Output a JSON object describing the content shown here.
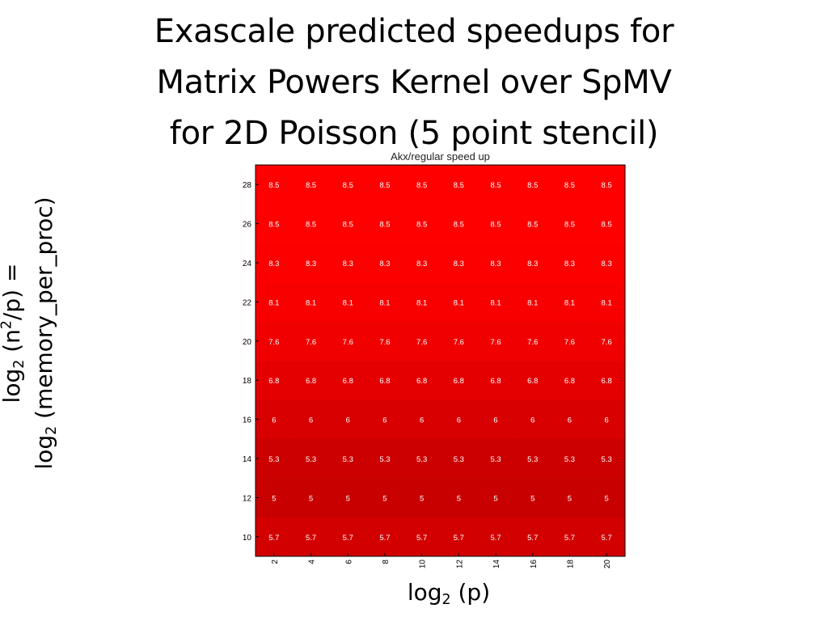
{
  "slide": {
    "title_lines": [
      "Exascale predicted speedups for",
      "Matrix Powers Kernel over SpMV",
      "for 2D Poisson (5 point stencil)"
    ]
  },
  "y_axis_label": {
    "line1": {
      "prefix": "log",
      "sub": "2",
      "middle": " (n",
      "sup": "2",
      "suffix": "/p) ="
    },
    "line2": {
      "prefix": "log",
      "sub": "2",
      "suffix": " (memory_per_proc)"
    }
  },
  "x_axis_label": {
    "prefix": "log",
    "sub": "2",
    "suffix": " (p)"
  },
  "chart_data": {
    "type": "heatmap",
    "title": "Akx/regular speed up",
    "x_ticks": [
      2,
      4,
      6,
      8,
      10,
      12,
      14,
      16,
      18,
      20
    ],
    "y_ticks": [
      28,
      26,
      24,
      22,
      20,
      18,
      16,
      14,
      12,
      10
    ],
    "values": [
      [
        8.5,
        8.5,
        8.5,
        8.5,
        8.5,
        8.5,
        8.5,
        8.5,
        8.5,
        8.5
      ],
      [
        8.5,
        8.5,
        8.5,
        8.5,
        8.5,
        8.5,
        8.5,
        8.5,
        8.5,
        8.5
      ],
      [
        8.3,
        8.3,
        8.3,
        8.3,
        8.3,
        8.3,
        8.3,
        8.3,
        8.3,
        8.3
      ],
      [
        8.1,
        8.1,
        8.1,
        8.1,
        8.1,
        8.1,
        8.1,
        8.1,
        8.1,
        8.1
      ],
      [
        7.6,
        7.6,
        7.6,
        7.6,
        7.6,
        7.6,
        7.6,
        7.6,
        7.6,
        7.6
      ],
      [
        6.8,
        6.8,
        6.8,
        6.8,
        6.8,
        6.8,
        6.8,
        6.8,
        6.8,
        6.8
      ],
      [
        6,
        6,
        6,
        6,
        6,
        6,
        6,
        6,
        6,
        6
      ],
      [
        5.3,
        5.3,
        5.3,
        5.3,
        5.3,
        5.3,
        5.3,
        5.3,
        5.3,
        5.3
      ],
      [
        5,
        5,
        5,
        5,
        5,
        5,
        5,
        5,
        5,
        5
      ],
      [
        5.7,
        5.7,
        5.7,
        5.7,
        5.7,
        5.7,
        5.7,
        5.7,
        5.7,
        5.7
      ]
    ],
    "color_low": "#c80000",
    "color_high": "#ff0000",
    "grid": false
  }
}
